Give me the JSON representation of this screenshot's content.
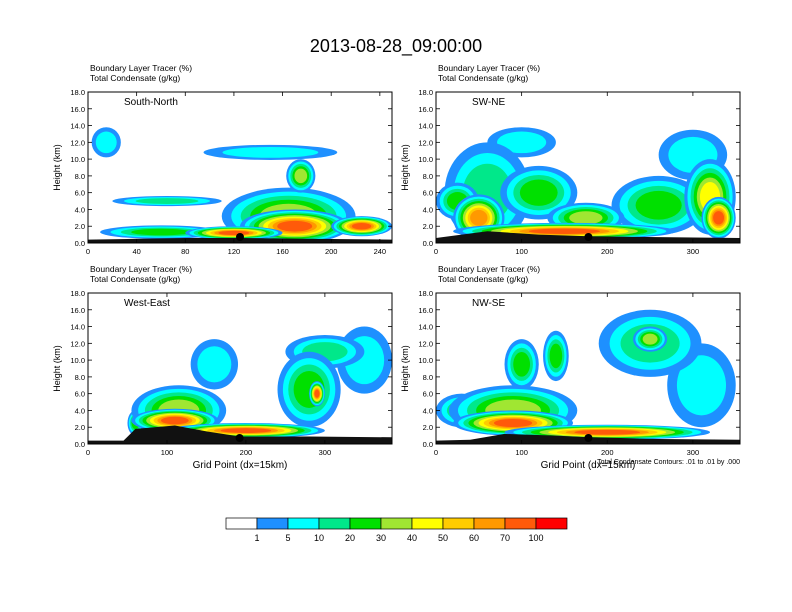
{
  "title": "2013-08-28_09:00:00",
  "chart_data": [
    {
      "type": "heatmap",
      "panel_label": "South-North",
      "title_line1": "Boundary Layer Tracer    (%)",
      "title_line2": "Total Condensate    (g/kg)",
      "xlabel": "",
      "ylabel": "Height (km)",
      "xlim": [
        0,
        250
      ],
      "ylim": [
        0,
        18
      ],
      "xticks": [
        0,
        40,
        80,
        120,
        160,
        200,
        240
      ],
      "yticks": [
        0,
        2,
        4,
        6,
        8,
        10,
        12,
        14,
        16,
        18
      ],
      "ytick_labels": [
        "0.0",
        "2.0",
        "4.0",
        "6.0",
        "8.0",
        "10.0",
        "12.0",
        "14.0",
        "16.0",
        "18.0"
      ],
      "site_marker_x": 125,
      "terrain": [
        [
          0,
          0.4
        ],
        [
          40,
          0.5
        ],
        [
          80,
          0.6
        ],
        [
          125,
          0.6
        ],
        [
          180,
          0.5
        ],
        [
          250,
          0.4
        ]
      ],
      "blobs": [
        {
          "x": 165,
          "y": 3.2,
          "rx": 55,
          "ry": 3.4,
          "level": 30
        },
        {
          "x": 170,
          "y": 2.0,
          "rx": 45,
          "ry": 2.0,
          "level": 70
        },
        {
          "x": 60,
          "y": 1.3,
          "rx": 50,
          "ry": 0.8,
          "level": 20
        },
        {
          "x": 120,
          "y": 1.2,
          "rx": 40,
          "ry": 0.8,
          "level": 70
        },
        {
          "x": 150,
          "y": 10.8,
          "rx": 55,
          "ry": 0.9,
          "level": 5
        },
        {
          "x": 15,
          "y": 12,
          "rx": 12,
          "ry": 1.8,
          "level": 5
        },
        {
          "x": 65,
          "y": 5.0,
          "rx": 45,
          "ry": 0.6,
          "level": 10
        },
        {
          "x": 175,
          "y": 8.0,
          "rx": 12,
          "ry": 2.0,
          "level": 30
        },
        {
          "x": 225,
          "y": 2.0,
          "rx": 25,
          "ry": 1.2,
          "level": 70
        }
      ]
    },
    {
      "type": "heatmap",
      "panel_label": "SW-NE",
      "title_line1": "Boundary Layer Tracer    (%)",
      "title_line2": "Total Condensate    (g/kg)",
      "xlabel": "",
      "ylabel": "Height (km)",
      "xlim": [
        0,
        355
      ],
      "ylim": [
        0,
        18
      ],
      "xticks": [
        0,
        100,
        200,
        300
      ],
      "yticks": [
        0,
        2,
        4,
        6,
        8,
        10,
        12,
        14,
        16,
        18
      ],
      "ytick_labels": [
        "0.0",
        "2.0",
        "4.0",
        "6.0",
        "8.0",
        "10.0",
        "12.0",
        "14.0",
        "16.0",
        "18.0"
      ],
      "site_marker_x": 178,
      "terrain": [
        [
          0,
          0.6
        ],
        [
          60,
          1.4
        ],
        [
          120,
          1.0
        ],
        [
          178,
          0.8
        ],
        [
          260,
          0.7
        ],
        [
          355,
          0.6
        ]
      ],
      "blobs": [
        {
          "x": 60,
          "y": 6.0,
          "rx": 50,
          "ry": 6.0,
          "level": 10
        },
        {
          "x": 50,
          "y": 3.0,
          "rx": 30,
          "ry": 2.8,
          "level": 60
        },
        {
          "x": 25,
          "y": 5.0,
          "rx": 25,
          "ry": 2.2,
          "level": 20
        },
        {
          "x": 120,
          "y": 6.0,
          "rx": 45,
          "ry": 3.2,
          "level": 20
        },
        {
          "x": 175,
          "y": 3.0,
          "rx": 45,
          "ry": 1.8,
          "level": 30
        },
        {
          "x": 150,
          "y": 1.4,
          "rx": 130,
          "ry": 1.0,
          "level": 70
        },
        {
          "x": 260,
          "y": 4.5,
          "rx": 55,
          "ry": 3.5,
          "level": 20
        },
        {
          "x": 320,
          "y": 5.5,
          "rx": 30,
          "ry": 4.5,
          "level": 40
        },
        {
          "x": 330,
          "y": 3.0,
          "rx": 20,
          "ry": 2.5,
          "level": 70
        },
        {
          "x": 100,
          "y": 12.0,
          "rx": 40,
          "ry": 1.8,
          "level": 5
        },
        {
          "x": 300,
          "y": 10.5,
          "rx": 40,
          "ry": 3.0,
          "level": 5
        }
      ]
    },
    {
      "type": "heatmap",
      "panel_label": "West-East",
      "title_line1": "Boundary Layer Tracer    (%)",
      "title_line2": "Total Condensate    (g/kg)",
      "xlabel": "Grid Point (dx=15km)",
      "ylabel": "Height (km)",
      "xlim": [
        0,
        385
      ],
      "ylim": [
        0,
        18
      ],
      "xticks": [
        0,
        100,
        200,
        300
      ],
      "yticks": [
        0,
        2,
        4,
        6,
        8,
        10,
        12,
        14,
        16,
        18
      ],
      "ytick_labels": [
        "0.0",
        "2.0",
        "4.0",
        "6.0",
        "8.0",
        "10.0",
        "12.0",
        "14.0",
        "16.0",
        "18.0"
      ],
      "site_marker_x": 192,
      "terrain": [
        [
          0,
          0.4
        ],
        [
          45,
          0.4
        ],
        [
          60,
          1.8
        ],
        [
          110,
          2.2
        ],
        [
          150,
          1.5
        ],
        [
          192,
          0.9
        ],
        [
          280,
          0.9
        ],
        [
          385,
          0.8
        ]
      ],
      "blobs": [
        {
          "x": 115,
          "y": 4.0,
          "rx": 60,
          "ry": 3.0,
          "level": 30
        },
        {
          "x": 110,
          "y": 2.8,
          "rx": 55,
          "ry": 1.4,
          "level": 70
        },
        {
          "x": 200,
          "y": 1.6,
          "rx": 100,
          "ry": 0.9,
          "level": 70
        },
        {
          "x": 280,
          "y": 6.5,
          "rx": 40,
          "ry": 4.5,
          "level": 20
        },
        {
          "x": 290,
          "y": 6.0,
          "rx": 10,
          "ry": 1.5,
          "level": 70
        },
        {
          "x": 300,
          "y": 11.0,
          "rx": 50,
          "ry": 2.0,
          "level": 10
        },
        {
          "x": 350,
          "y": 10.0,
          "rx": 35,
          "ry": 4.0,
          "level": 5
        },
        {
          "x": 160,
          "y": 9.5,
          "rx": 30,
          "ry": 3.0,
          "level": 5
        },
        {
          "x": 60,
          "y": 2.5,
          "rx": 10,
          "ry": 1.5,
          "level": 20
        }
      ]
    },
    {
      "type": "heatmap",
      "panel_label": "NW-SE",
      "title_line1": "Boundary Layer Tracer    (%)",
      "title_line2": "Total Condensate    (g/kg)",
      "xlabel": "Grid Point (dx=15km)",
      "ylabel": "Height (km)",
      "xlim": [
        0,
        355
      ],
      "ylim": [
        0,
        18
      ],
      "xticks": [
        0,
        100,
        200,
        300
      ],
      "yticks": [
        0,
        2,
        4,
        6,
        8,
        10,
        12,
        14,
        16,
        18
      ],
      "ytick_labels": [
        "0.0",
        "2.0",
        "4.0",
        "6.0",
        "8.0",
        "10.0",
        "12.0",
        "14.0",
        "16.0",
        "18.0"
      ],
      "site_marker_x": 178,
      "note": "Total Condensate Contours: .01 to .01 by .000",
      "terrain": [
        [
          0,
          0.4
        ],
        [
          40,
          0.5
        ],
        [
          80,
          1.2
        ],
        [
          140,
          1.0
        ],
        [
          178,
          0.8
        ],
        [
          260,
          0.6
        ],
        [
          355,
          0.5
        ]
      ],
      "blobs": [
        {
          "x": 90,
          "y": 4.0,
          "rx": 75,
          "ry": 3.0,
          "level": 30
        },
        {
          "x": 90,
          "y": 2.5,
          "rx": 70,
          "ry": 1.5,
          "level": 70
        },
        {
          "x": 200,
          "y": 1.4,
          "rx": 120,
          "ry": 0.9,
          "level": 70
        },
        {
          "x": 100,
          "y": 9.5,
          "rx": 20,
          "ry": 3.0,
          "level": 20
        },
        {
          "x": 140,
          "y": 10.5,
          "rx": 15,
          "ry": 3.0,
          "level": 20
        },
        {
          "x": 250,
          "y": 12.0,
          "rx": 60,
          "ry": 4.0,
          "level": 10
        },
        {
          "x": 250,
          "y": 12.5,
          "rx": 20,
          "ry": 1.5,
          "level": 30
        },
        {
          "x": 310,
          "y": 7.0,
          "rx": 40,
          "ry": 5.0,
          "level": 5
        },
        {
          "x": 30,
          "y": 4.0,
          "rx": 30,
          "ry": 2.0,
          "level": 10
        }
      ]
    }
  ],
  "colorbar": {
    "labels": [
      "1",
      "5",
      "10",
      "20",
      "30",
      "40",
      "50",
      "60",
      "70",
      "100"
    ],
    "colors": [
      "#ffffff",
      "#1e90ff",
      "#00ffff",
      "#00e88a",
      "#00e000",
      "#a0e632",
      "#ffff00",
      "#ffcc00",
      "#ff9900",
      "#ff5a0a",
      "#ff0000"
    ]
  }
}
